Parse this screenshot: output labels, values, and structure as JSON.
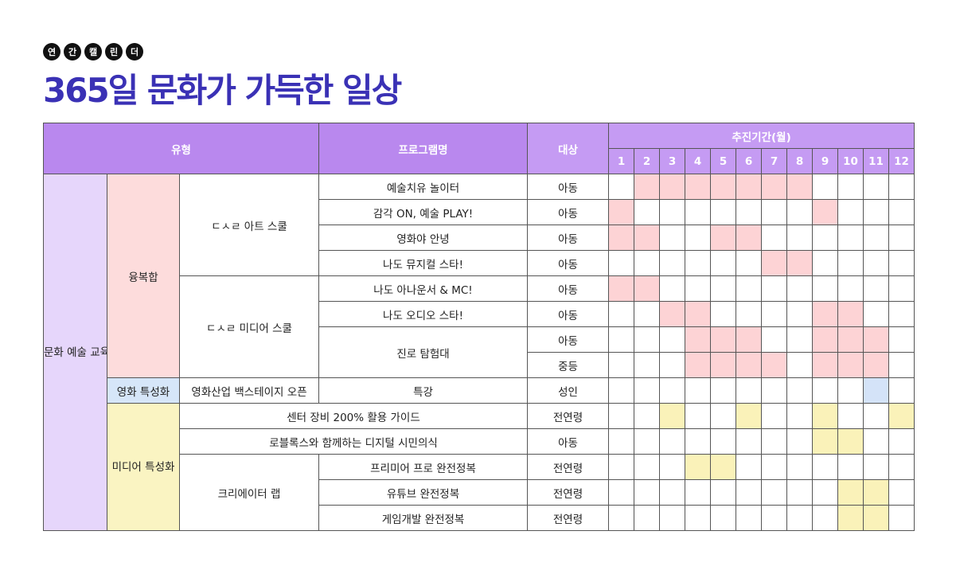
{
  "header": {
    "badges": [
      "연",
      "간",
      "캘",
      "린",
      "더"
    ],
    "title": "365일 문화가 가득한 일상"
  },
  "table": {
    "headers": {
      "type": "유형",
      "program": "프로그램명",
      "target": "대상",
      "period": "추진기간(월)",
      "months": [
        "1",
        "2",
        "3",
        "4",
        "5",
        "6",
        "7",
        "8",
        "9",
        "10",
        "11",
        "12"
      ]
    },
    "category": "문화 예술 교육",
    "groups": {
      "fusion": "융복합",
      "film": "영화 특성화",
      "media": "미디어 특성화"
    },
    "subgroups": {
      "art_school": "ㄷㅅㄹ 아트 스쿨",
      "media_school": "ㄷㅅㄹ 미디어 스쿨",
      "backstage": "영화산업 백스테이지 오픈",
      "center_guide": "센터 장비 200% 활용 가이드",
      "roblox": "로블록스와 함께하는 디지털 시민의식",
      "creator_lab": "크리에이터 랩"
    },
    "rows": [
      {
        "program": "예술치유 놀이터",
        "target": "아동",
        "months": [
          2,
          3,
          4,
          5,
          6,
          7,
          8
        ],
        "color": "pink"
      },
      {
        "program": "감각 ON, 예술 PLAY!",
        "target": "아동",
        "months": [
          1,
          9
        ],
        "color": "pink"
      },
      {
        "program": "영화야 안녕",
        "target": "아동",
        "months": [
          1,
          2,
          5,
          6
        ],
        "color": "pink"
      },
      {
        "program": "나도 뮤지컬 스타!",
        "target": "아동",
        "months": [
          7,
          8
        ],
        "color": "pink"
      },
      {
        "program": "나도 아나운서 & MC!",
        "target": "아동",
        "months": [
          1,
          2
        ],
        "color": "pink"
      },
      {
        "program": "나도 오디오 스타!",
        "target": "아동",
        "months": [
          3,
          4,
          9,
          10
        ],
        "color": "pink"
      },
      {
        "program": "진로 탐험대",
        "target": "아동",
        "months": [
          4,
          5,
          6,
          9,
          10,
          11
        ],
        "color": "pink"
      },
      {
        "program": "",
        "target": "중등",
        "months": [
          4,
          5,
          6,
          7,
          9,
          10,
          11
        ],
        "color": "pink"
      },
      {
        "program": "특강",
        "target": "성인",
        "months": [
          11
        ],
        "color": "blue"
      },
      {
        "program": "",
        "target": "전연령",
        "months": [
          3,
          6,
          9,
          12
        ],
        "color": "yellow"
      },
      {
        "program": "",
        "target": "아동",
        "months": [
          9,
          10
        ],
        "color": "yellow"
      },
      {
        "program": "프리미어 프로 완전정복",
        "target": "전연령",
        "months": [
          4,
          5
        ],
        "color": "yellow"
      },
      {
        "program": "유튜브 완전정복",
        "target": "전연령",
        "months": [
          10,
          11
        ],
        "color": "yellow"
      },
      {
        "program": "게임개발 완전정복",
        "target": "전연령",
        "months": [
          10,
          11
        ],
        "color": "yellow"
      }
    ]
  },
  "colors": {
    "title": "#3a31b5",
    "header": "#c59bf3",
    "pink": "#fdd3d5",
    "blue": "#d4e3f8",
    "yellow": "#faf2b9",
    "category": "#e6d6fb"
  }
}
